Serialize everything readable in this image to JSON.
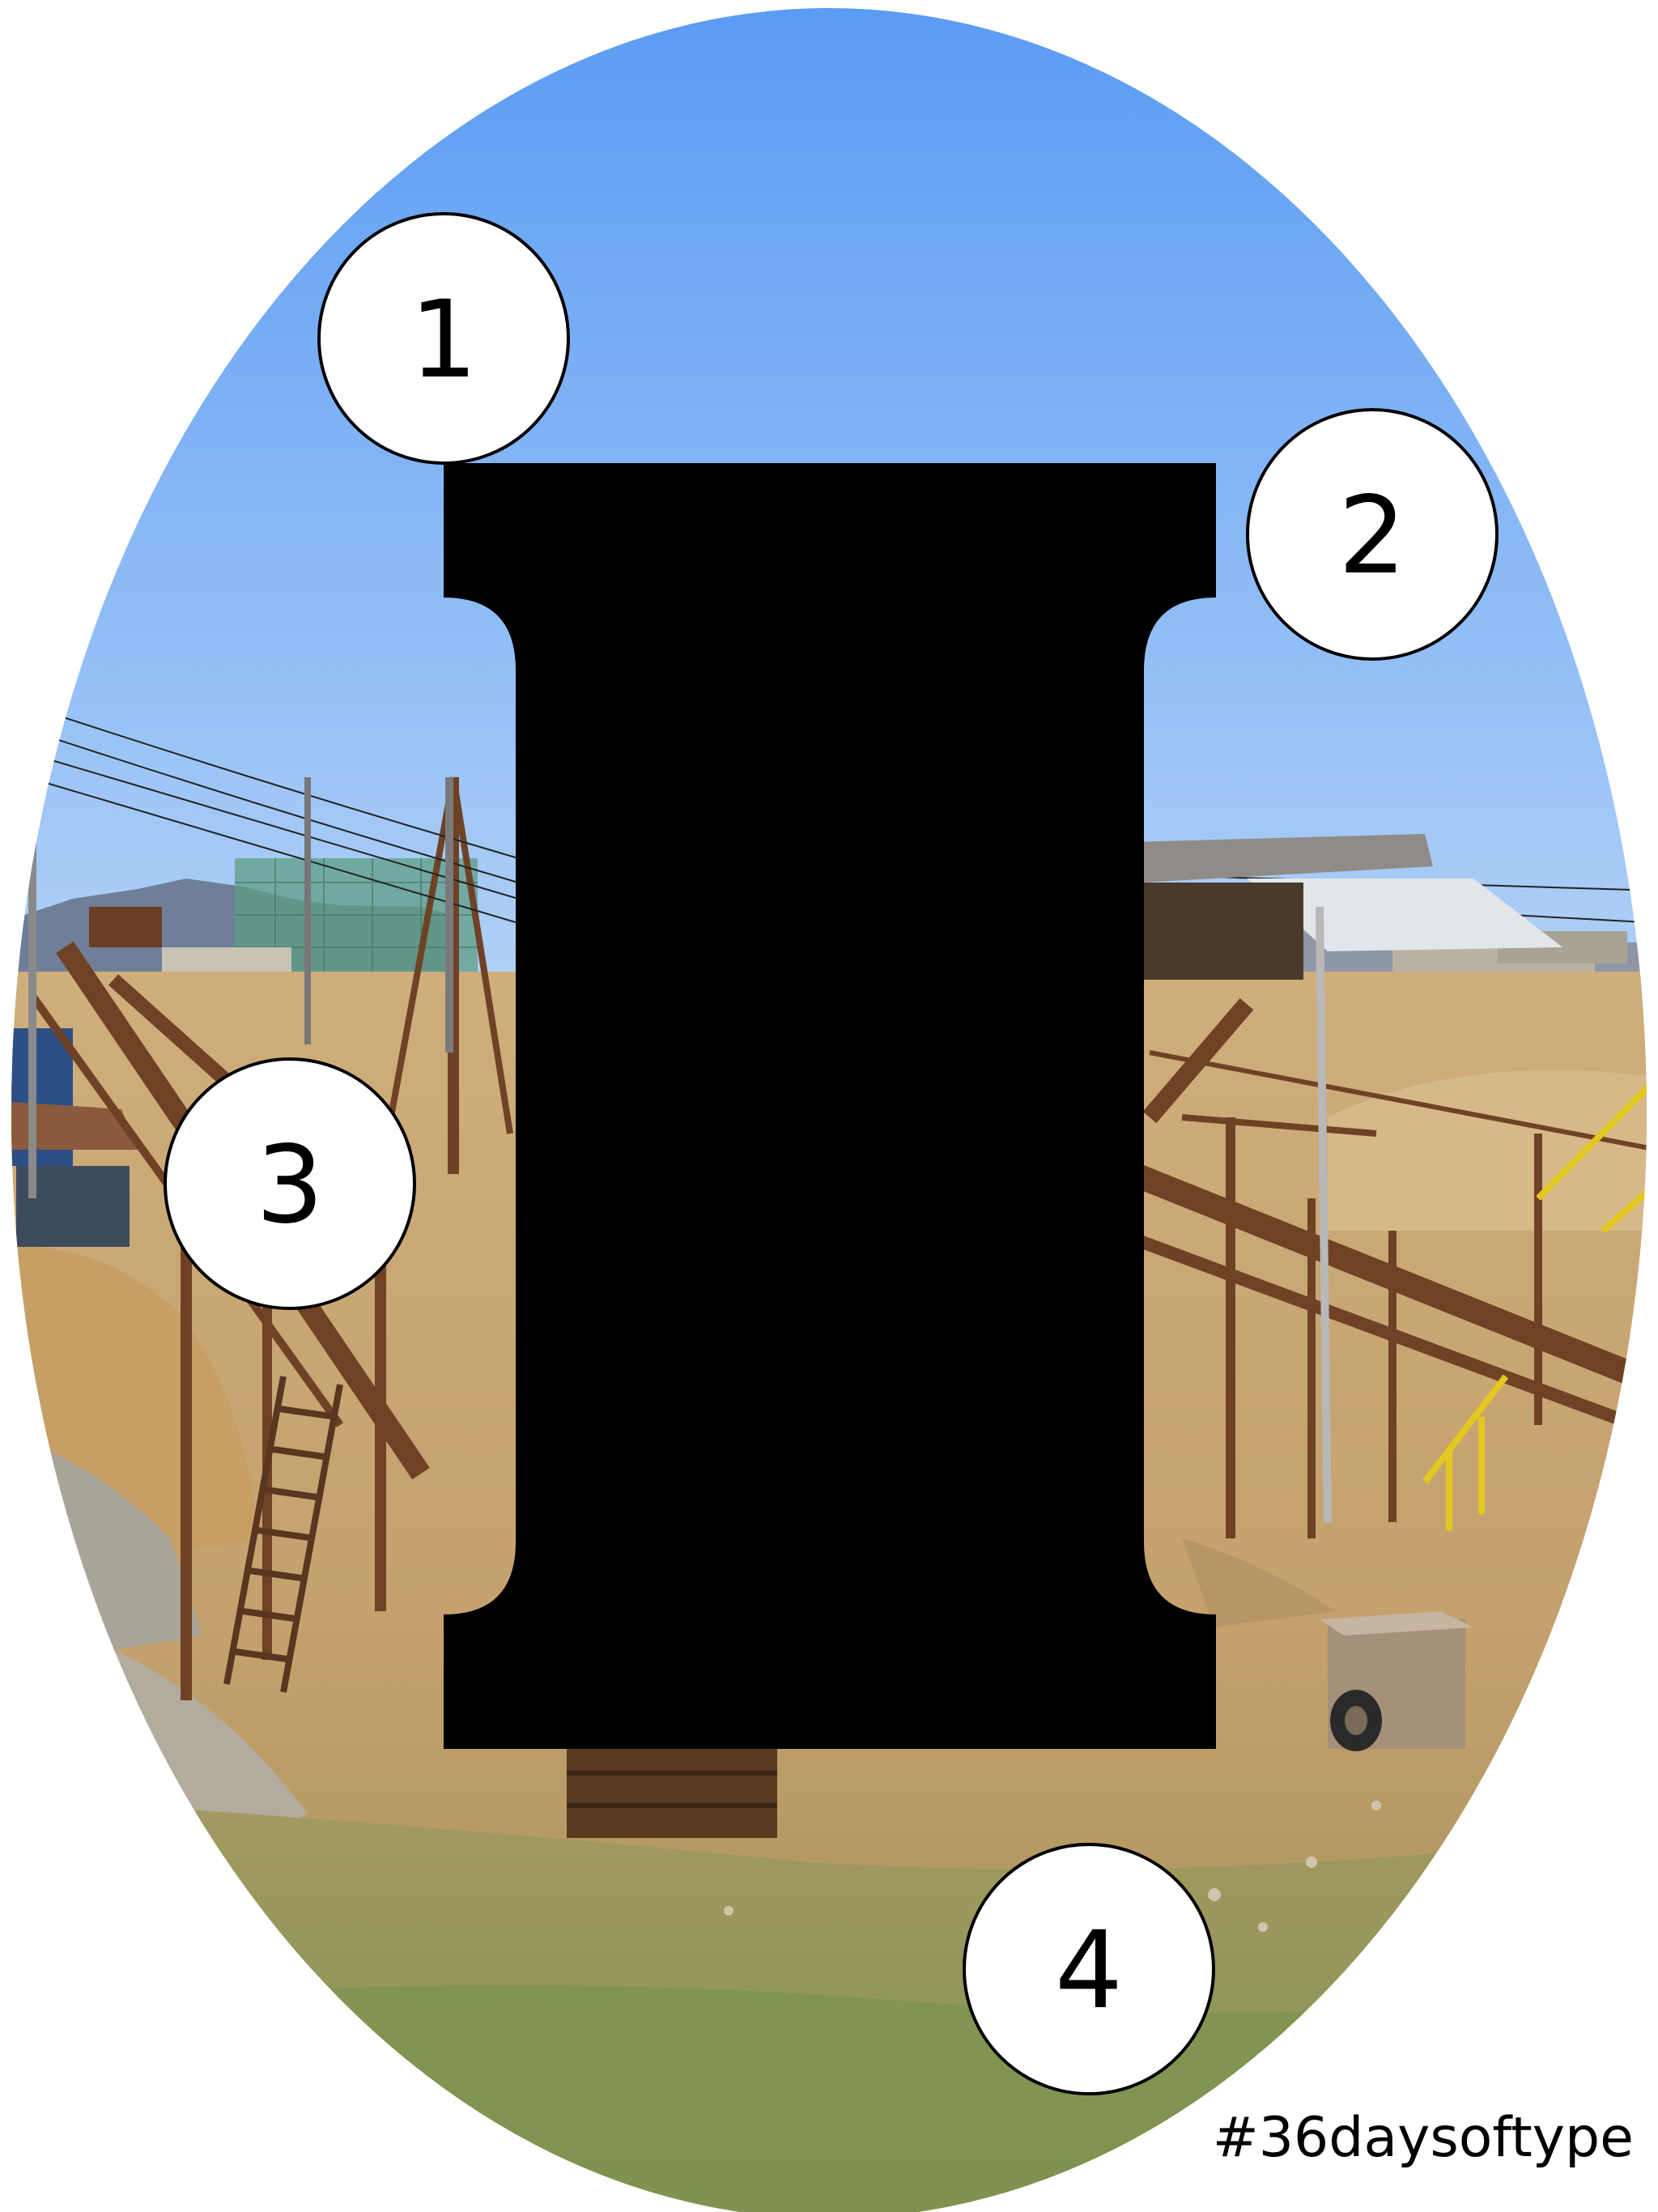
{
  "poster": {
    "hashtag": "#36daysoftype",
    "letter_icon": "letter-i-serif-glyph",
    "background_icon": "industrial-sand-gravel-plant-photo"
  },
  "badges": [
    {
      "label": "1"
    },
    {
      "label": "2"
    },
    {
      "label": "3"
    },
    {
      "label": "4"
    }
  ],
  "colors": {
    "background": "#ffffff",
    "sky_top": "#5b9cf4",
    "sky_bottom": "#a9ccf5",
    "ground": "#c9a774",
    "grass": "#8d9a5a",
    "rust": "#7a4a2a",
    "letter": "#000000",
    "badge_fill": "#ffffff",
    "badge_stroke": "#000000"
  }
}
